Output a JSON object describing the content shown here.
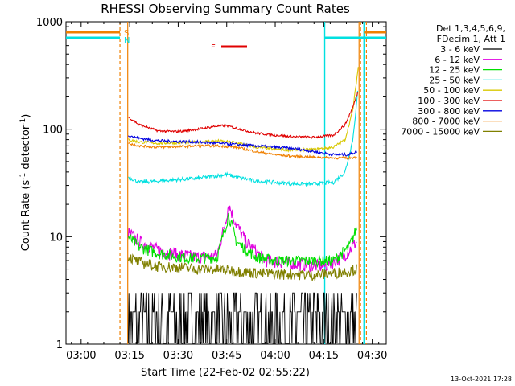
{
  "chart_data": {
    "type": "line",
    "title": "RHESSI Observing Summary Count Rates",
    "xlabel": "Start Time (22-Feb-02 02:55:22)",
    "ylabel_main": "Count Rate (s",
    "ylabel_exp1": "-1",
    "ylabel_mid": " detector",
    "ylabel_exp2": "-1",
    "ylabel_end": ")",
    "footer": "13-Oct-2021 17:28",
    "yscale": "log",
    "ylim": [
      1,
      1000
    ],
    "x_ticks": [
      {
        "label": "03:00",
        "t": 3.0
      },
      {
        "label": "03:15",
        "t": 3.25
      },
      {
        "label": "03:30",
        "t": 3.5
      },
      {
        "label": "03:45",
        "t": 3.75
      },
      {
        "label": "04:00",
        "t": 4.0
      },
      {
        "label": "04:15",
        "t": 4.25
      },
      {
        "label": "04:30",
        "t": 4.5
      }
    ],
    "y_ticks": [
      {
        "label": "1",
        "v": 1
      },
      {
        "label": "10",
        "v": 10
      },
      {
        "label": "100",
        "v": 100
      },
      {
        "label": "1000",
        "v": 1000
      }
    ],
    "legend_header": [
      "Det 1,3,4,5,6,9,",
      "FDecim 1, Att 1"
    ],
    "flags": {
      "s_label": "S",
      "n_label": "N",
      "f_label": "F",
      "s_color": "#f08000",
      "n_color": "#00e0e0",
      "f_color": "#e00000"
    },
    "series": [
      {
        "name": "3 - 6 keV",
        "color": "#000000",
        "points": [
          [
            3.243,
            2.8
          ],
          [
            3.28,
            2.5
          ],
          [
            3.35,
            2.0
          ],
          [
            3.45,
            1.8
          ],
          [
            3.55,
            1.9
          ],
          [
            3.65,
            1.9
          ],
          [
            3.75,
            2.0
          ],
          [
            3.85,
            1.8
          ],
          [
            3.95,
            1.9
          ],
          [
            4.05,
            2.0
          ],
          [
            4.15,
            2.0
          ],
          [
            4.25,
            2.2
          ],
          [
            4.32,
            2.6
          ],
          [
            4.42,
            3.0
          ]
        ]
      },
      {
        "name": "6 - 12 keV",
        "color": "#e000e0",
        "points": [
          [
            3.243,
            11
          ],
          [
            3.3,
            9
          ],
          [
            3.4,
            7.5
          ],
          [
            3.5,
            6.8
          ],
          [
            3.6,
            6.5
          ],
          [
            3.7,
            6.7
          ],
          [
            3.74,
            13
          ],
          [
            3.76,
            20
          ],
          [
            3.8,
            13
          ],
          [
            3.85,
            9
          ],
          [
            3.95,
            6
          ],
          [
            4.05,
            5.8
          ],
          [
            4.15,
            5.5
          ],
          [
            4.25,
            5.3
          ],
          [
            4.35,
            6.5
          ],
          [
            4.42,
            9
          ]
        ]
      },
      {
        "name": "12 - 25 keV",
        "color": "#00e000",
        "points": [
          [
            3.243,
            10
          ],
          [
            3.3,
            8
          ],
          [
            3.4,
            7
          ],
          [
            3.5,
            6.5
          ],
          [
            3.6,
            6.3
          ],
          [
            3.7,
            6.4
          ],
          [
            3.76,
            16
          ],
          [
            3.8,
            9
          ],
          [
            3.9,
            6.5
          ],
          [
            4.0,
            6
          ],
          [
            4.1,
            6
          ],
          [
            4.2,
            6
          ],
          [
            4.3,
            6
          ],
          [
            4.38,
            8
          ],
          [
            4.42,
            12
          ]
        ]
      },
      {
        "name": "25 - 50 keV",
        "color": "#00e0e0",
        "points": [
          [
            3.243,
            36
          ],
          [
            3.3,
            32
          ],
          [
            3.4,
            33
          ],
          [
            3.5,
            34
          ],
          [
            3.6,
            35
          ],
          [
            3.7,
            37
          ],
          [
            3.75,
            38
          ],
          [
            3.8,
            36
          ],
          [
            3.9,
            33
          ],
          [
            4.0,
            32
          ],
          [
            4.1,
            31
          ],
          [
            4.2,
            31
          ],
          [
            4.3,
            32
          ],
          [
            4.36,
            40
          ],
          [
            4.4,
            80
          ],
          [
            4.425,
            220
          ]
        ]
      },
      {
        "name": "50 - 100 keV",
        "color": "#d8c800",
        "points": [
          [
            3.243,
            80
          ],
          [
            3.3,
            76
          ],
          [
            3.4,
            74
          ],
          [
            3.5,
            75
          ],
          [
            3.6,
            76
          ],
          [
            3.7,
            78
          ],
          [
            3.8,
            75
          ],
          [
            3.9,
            68
          ],
          [
            4.0,
            65
          ],
          [
            4.1,
            64
          ],
          [
            4.2,
            65
          ],
          [
            4.3,
            68
          ],
          [
            4.36,
            80
          ],
          [
            4.4,
            150
          ],
          [
            4.428,
            380
          ]
        ]
      },
      {
        "name": "100 - 300 keV",
        "color": "#e00000",
        "points": [
          [
            3.243,
            130
          ],
          [
            3.3,
            110
          ],
          [
            3.4,
            96
          ],
          [
            3.5,
            95
          ],
          [
            3.6,
            100
          ],
          [
            3.7,
            107
          ],
          [
            3.75,
            108
          ],
          [
            3.8,
            102
          ],
          [
            3.9,
            92
          ],
          [
            4.0,
            88
          ],
          [
            4.1,
            85
          ],
          [
            4.2,
            84
          ],
          [
            4.3,
            88
          ],
          [
            4.36,
            110
          ],
          [
            4.4,
            160
          ],
          [
            4.425,
            220
          ]
        ]
      },
      {
        "name": "300 - 800 keV",
        "color": "#0000e0",
        "points": [
          [
            3.243,
            88
          ],
          [
            3.3,
            82
          ],
          [
            3.4,
            78
          ],
          [
            3.5,
            77
          ],
          [
            3.6,
            76
          ],
          [
            3.7,
            74
          ],
          [
            3.8,
            72
          ],
          [
            3.9,
            70
          ],
          [
            4.0,
            68
          ],
          [
            4.1,
            66
          ],
          [
            4.2,
            62
          ],
          [
            4.3,
            58
          ],
          [
            4.38,
            58
          ],
          [
            4.42,
            62
          ]
        ]
      },
      {
        "name": "800 - 7000 keV",
        "color": "#f08000",
        "points": [
          [
            3.243,
            74
          ],
          [
            3.3,
            70
          ],
          [
            3.4,
            68
          ],
          [
            3.5,
            69
          ],
          [
            3.6,
            70
          ],
          [
            3.7,
            70
          ],
          [
            3.8,
            68
          ],
          [
            3.9,
            62
          ],
          [
            4.0,
            58
          ],
          [
            4.1,
            56
          ],
          [
            4.2,
            55
          ],
          [
            4.3,
            54
          ],
          [
            4.38,
            54
          ],
          [
            4.42,
            55
          ]
        ]
      },
      {
        "name": "7000 - 15000 keV",
        "color": "#808000",
        "points": [
          [
            3.243,
            6.5
          ],
          [
            3.3,
            5.8
          ],
          [
            3.4,
            5.3
          ],
          [
            3.5,
            5.2
          ],
          [
            3.6,
            5.0
          ],
          [
            3.7,
            5.0
          ],
          [
            3.8,
            4.8
          ],
          [
            3.9,
            4.6
          ],
          [
            4.0,
            4.5
          ],
          [
            4.1,
            4.5
          ],
          [
            4.2,
            4.4
          ],
          [
            4.3,
            4.6
          ],
          [
            4.38,
            4.8
          ],
          [
            4.42,
            5.0
          ]
        ]
      }
    ]
  }
}
